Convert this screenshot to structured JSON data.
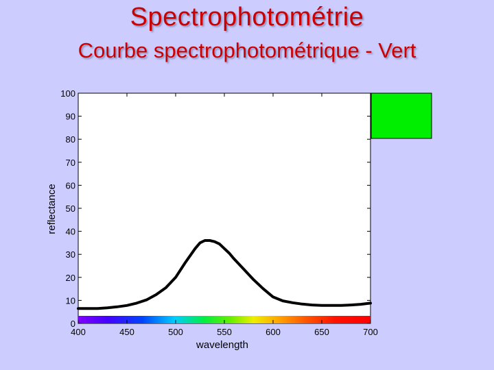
{
  "slide": {
    "title": "Spectrophotométrie",
    "subtitle": "Courbe spectrophotométrique - Vert"
  },
  "chart_data": {
    "type": "line",
    "title": "",
    "xlabel": "wavelength",
    "ylabel": "reflectance",
    "xlim": [
      400,
      700
    ],
    "ylim": [
      0,
      100
    ],
    "xticks": [
      400,
      450,
      500,
      550,
      600,
      650,
      700
    ],
    "yticks": [
      0,
      10,
      20,
      30,
      40,
      50,
      60,
      70,
      80,
      90,
      100
    ],
    "grid": false,
    "line_color": "#000000",
    "swatch_color": "#00ee00",
    "spectrum_bar": true,
    "series": [
      {
        "x": [
          400,
          410,
          420,
          430,
          440,
          450,
          460,
          470,
          480,
          490,
          500,
          510,
          520,
          525,
          530,
          535,
          540,
          545,
          550,
          555,
          560,
          570,
          580,
          590,
          600,
          610,
          620,
          630,
          640,
          650,
          660,
          670,
          680,
          690,
          700
        ],
        "y": [
          6.5,
          6.5,
          6.5,
          6.8,
          7.2,
          7.8,
          8.8,
          10.2,
          12.5,
          15.5,
          20,
          26.5,
          32.5,
          35,
          36,
          36,
          35.5,
          34.5,
          32.5,
          30.5,
          28,
          23.5,
          19,
          15,
          11.5,
          9.8,
          9,
          8.4,
          8,
          7.8,
          7.8,
          7.8,
          8,
          8.3,
          8.8
        ]
      }
    ]
  }
}
